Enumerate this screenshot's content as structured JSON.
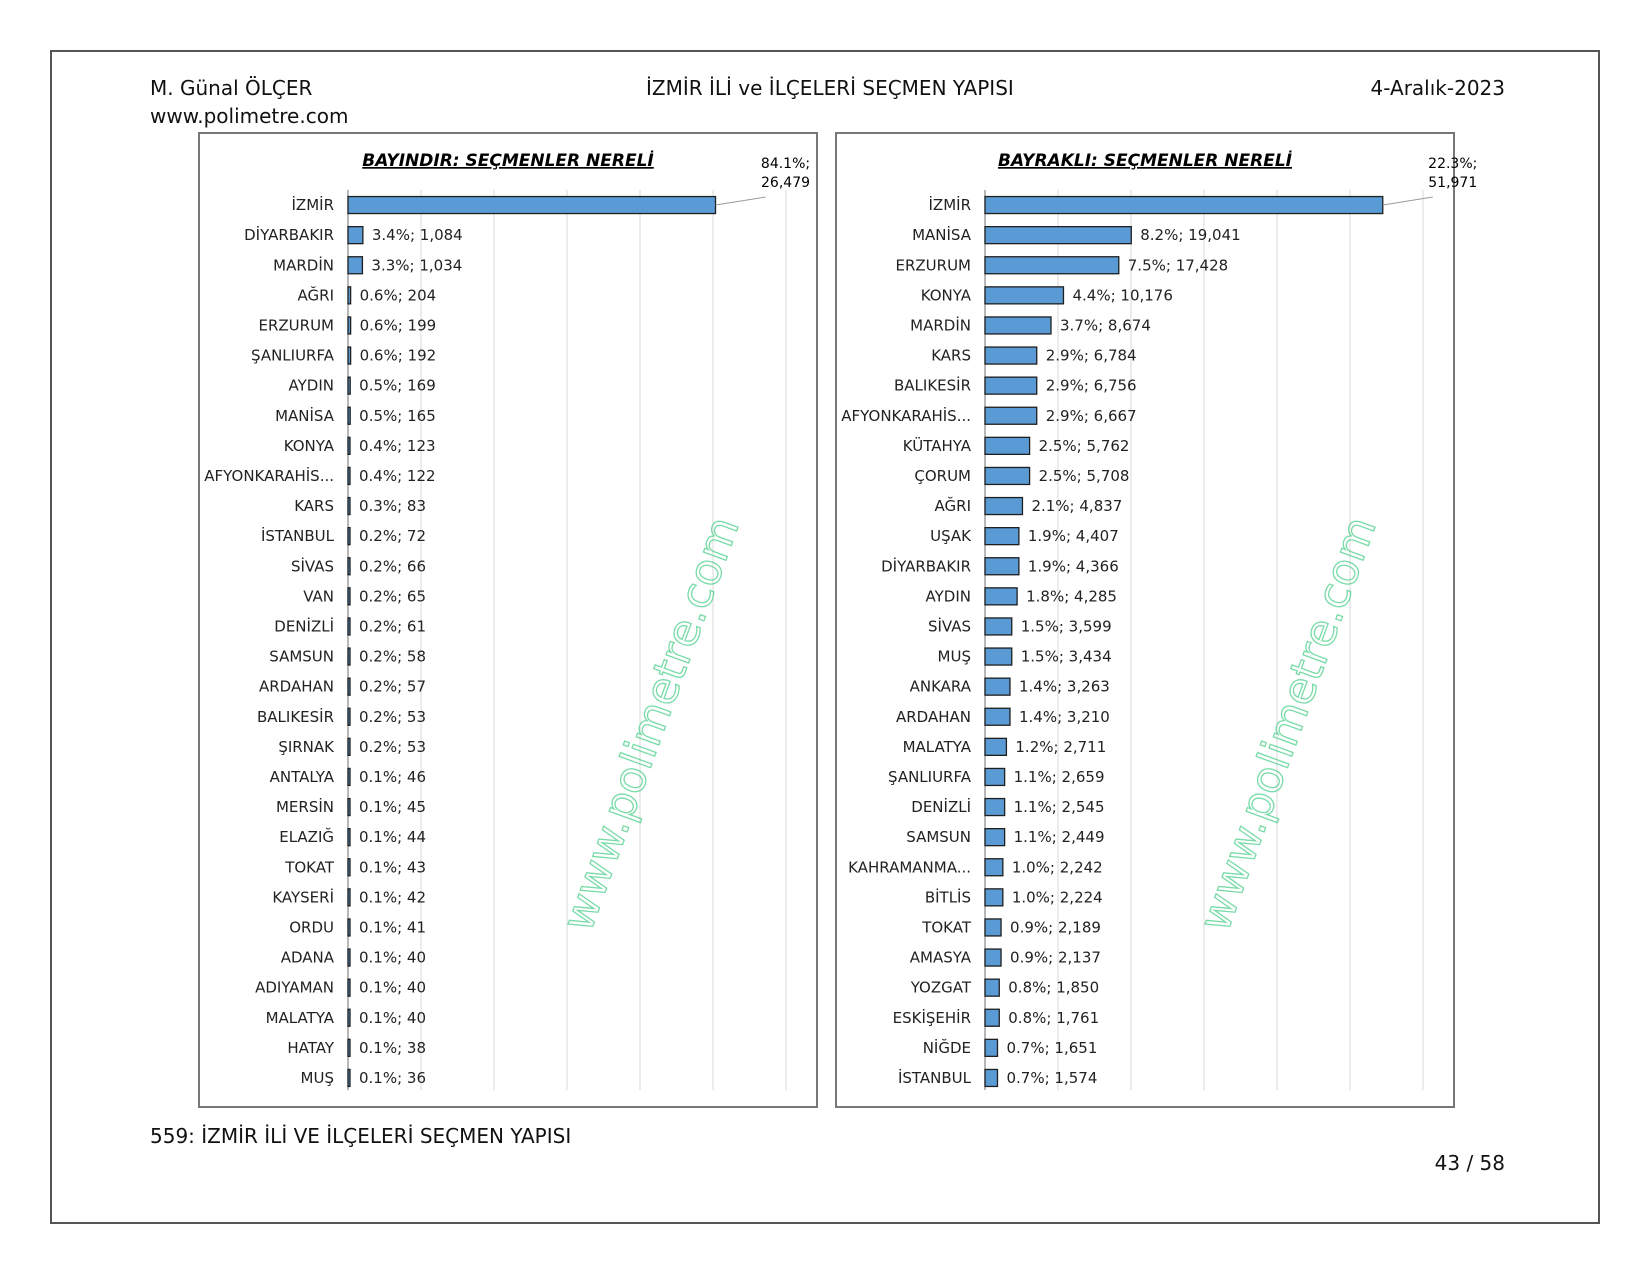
{
  "header": {
    "author": "M. Günal ÖLÇER",
    "website": "www.polimetre.com",
    "title": "İZMİR İLİ ve İLÇELERİ SEÇMEN YAPISI",
    "date": "4-Aralık-2023"
  },
  "footer": {
    "caption": "559: İZMİR İLİ VE İLÇELERİ SEÇMEN YAPISI",
    "page": "43 / 58"
  },
  "watermark": "www.polimetre.com",
  "colors": {
    "bar": "#5b9bd5",
    "bar_border": "#1f1f1f",
    "watermark": "#4ccf8a"
  },
  "chart_data": [
    {
      "type": "bar",
      "orientation": "horizontal",
      "title": "BAYINDIR: SEÇMENLER NERELİ",
      "grid": true,
      "xlim": [
        0,
        100
      ],
      "categories": [
        "İZMİR",
        "DİYARBAKIR",
        "MARDİN",
        "AĞRI",
        "ERZURUM",
        "ŞANLIURFA",
        "AYDIN",
        "MANİSA",
        "KONYA",
        "AFYONKARAHİS...",
        "KARS",
        "İSTANBUL",
        "SİVAS",
        "VAN",
        "DENİZLİ",
        "SAMSUN",
        "ARDAHAN",
        "BALIKESİR",
        "ŞIRNAK",
        "ANTALYA",
        "MERSİN",
        "ELAZIĞ",
        "TOKAT",
        "KAYSERİ",
        "ORDU",
        "ADANA",
        "ADIYAMAN",
        "MALATYA",
        "HATAY",
        "MUŞ"
      ],
      "values": [
        84.1,
        3.4,
        3.3,
        0.6,
        0.6,
        0.6,
        0.5,
        0.5,
        0.4,
        0.4,
        0.3,
        0.2,
        0.2,
        0.2,
        0.2,
        0.2,
        0.2,
        0.2,
        0.2,
        0.1,
        0.1,
        0.1,
        0.1,
        0.1,
        0.1,
        0.1,
        0.1,
        0.1,
        0.1,
        0.1
      ],
      "data_labels": [
        "84.1%;|26,479",
        "3.4%; 1,084",
        "3.3%; 1,034",
        "0.6%; 204",
        "0.6%; 199",
        "0.6%; 192",
        "0.5%; 169",
        "0.5%; 165",
        "0.4%; 123",
        "0.4%; 122",
        "0.3%; 83",
        "0.2%; 72",
        "0.2%; 66",
        "0.2%; 65",
        "0.2%; 61",
        "0.2%; 58",
        "0.2%; 57",
        "0.2%; 53",
        "0.2%; 53",
        "0.1%; 46",
        "0.1%; 45",
        "0.1%; 44",
        "0.1%; 43",
        "0.1%; 42",
        "0.1%; 41",
        "0.1%; 40",
        "0.1%; 40",
        "0.1%; 40",
        "0.1%; 38",
        "0.1%; 36"
      ]
    },
    {
      "type": "bar",
      "orientation": "horizontal",
      "title": "BAYRAKLI: SEÇMENLER NERELİ",
      "grid": true,
      "xlim": [
        0,
        24.5
      ],
      "categories": [
        "İZMİR",
        "MANİSA",
        "ERZURUM",
        "KONYA",
        "MARDİN",
        "KARS",
        "BALIKESİR",
        "AFYONKARAHİS...",
        "KÜTAHYA",
        "ÇORUM",
        "AĞRI",
        "UŞAK",
        "DİYARBAKIR",
        "AYDIN",
        "SİVAS",
        "MUŞ",
        "ANKARA",
        "ARDAHAN",
        "MALATYA",
        "ŞANLIURFA",
        "DENİZLİ",
        "SAMSUN",
        "KAHRAMANMA...",
        "BİTLİS",
        "TOKAT",
        "AMASYA",
        "YOZGAT",
        "ESKİŞEHİR",
        "NİĞDE",
        "İSTANBUL"
      ],
      "values": [
        22.3,
        8.2,
        7.5,
        4.4,
        3.7,
        2.9,
        2.9,
        2.9,
        2.5,
        2.5,
        2.1,
        1.9,
        1.9,
        1.8,
        1.5,
        1.5,
        1.4,
        1.4,
        1.2,
        1.1,
        1.1,
        1.1,
        1.0,
        1.0,
        0.9,
        0.9,
        0.8,
        0.8,
        0.7,
        0.7
      ],
      "data_labels": [
        "22.3%;|51,971",
        "8.2%; 19,041",
        "7.5%; 17,428",
        "4.4%; 10,176",
        "3.7%; 8,674",
        "2.9%; 6,784",
        "2.9%; 6,756",
        "2.9%; 6,667",
        "2.5%; 5,762",
        "2.5%; 5,708",
        "2.1%; 4,837",
        "1.9%; 4,407",
        "1.9%; 4,366",
        "1.8%; 4,285",
        "1.5%; 3,599",
        "1.5%; 3,434",
        "1.4%; 3,263",
        "1.4%; 3,210",
        "1.2%; 2,711",
        "1.1%; 2,659",
        "1.1%; 2,545",
        "1.1%; 2,449",
        "1.0%; 2,242",
        "1.0%; 2,224",
        "0.9%; 2,189",
        "0.9%; 2,137",
        "0.8%; 1,850",
        "0.8%; 1,761",
        "0.7%; 1,651",
        "0.7%; 1,574"
      ]
    }
  ]
}
